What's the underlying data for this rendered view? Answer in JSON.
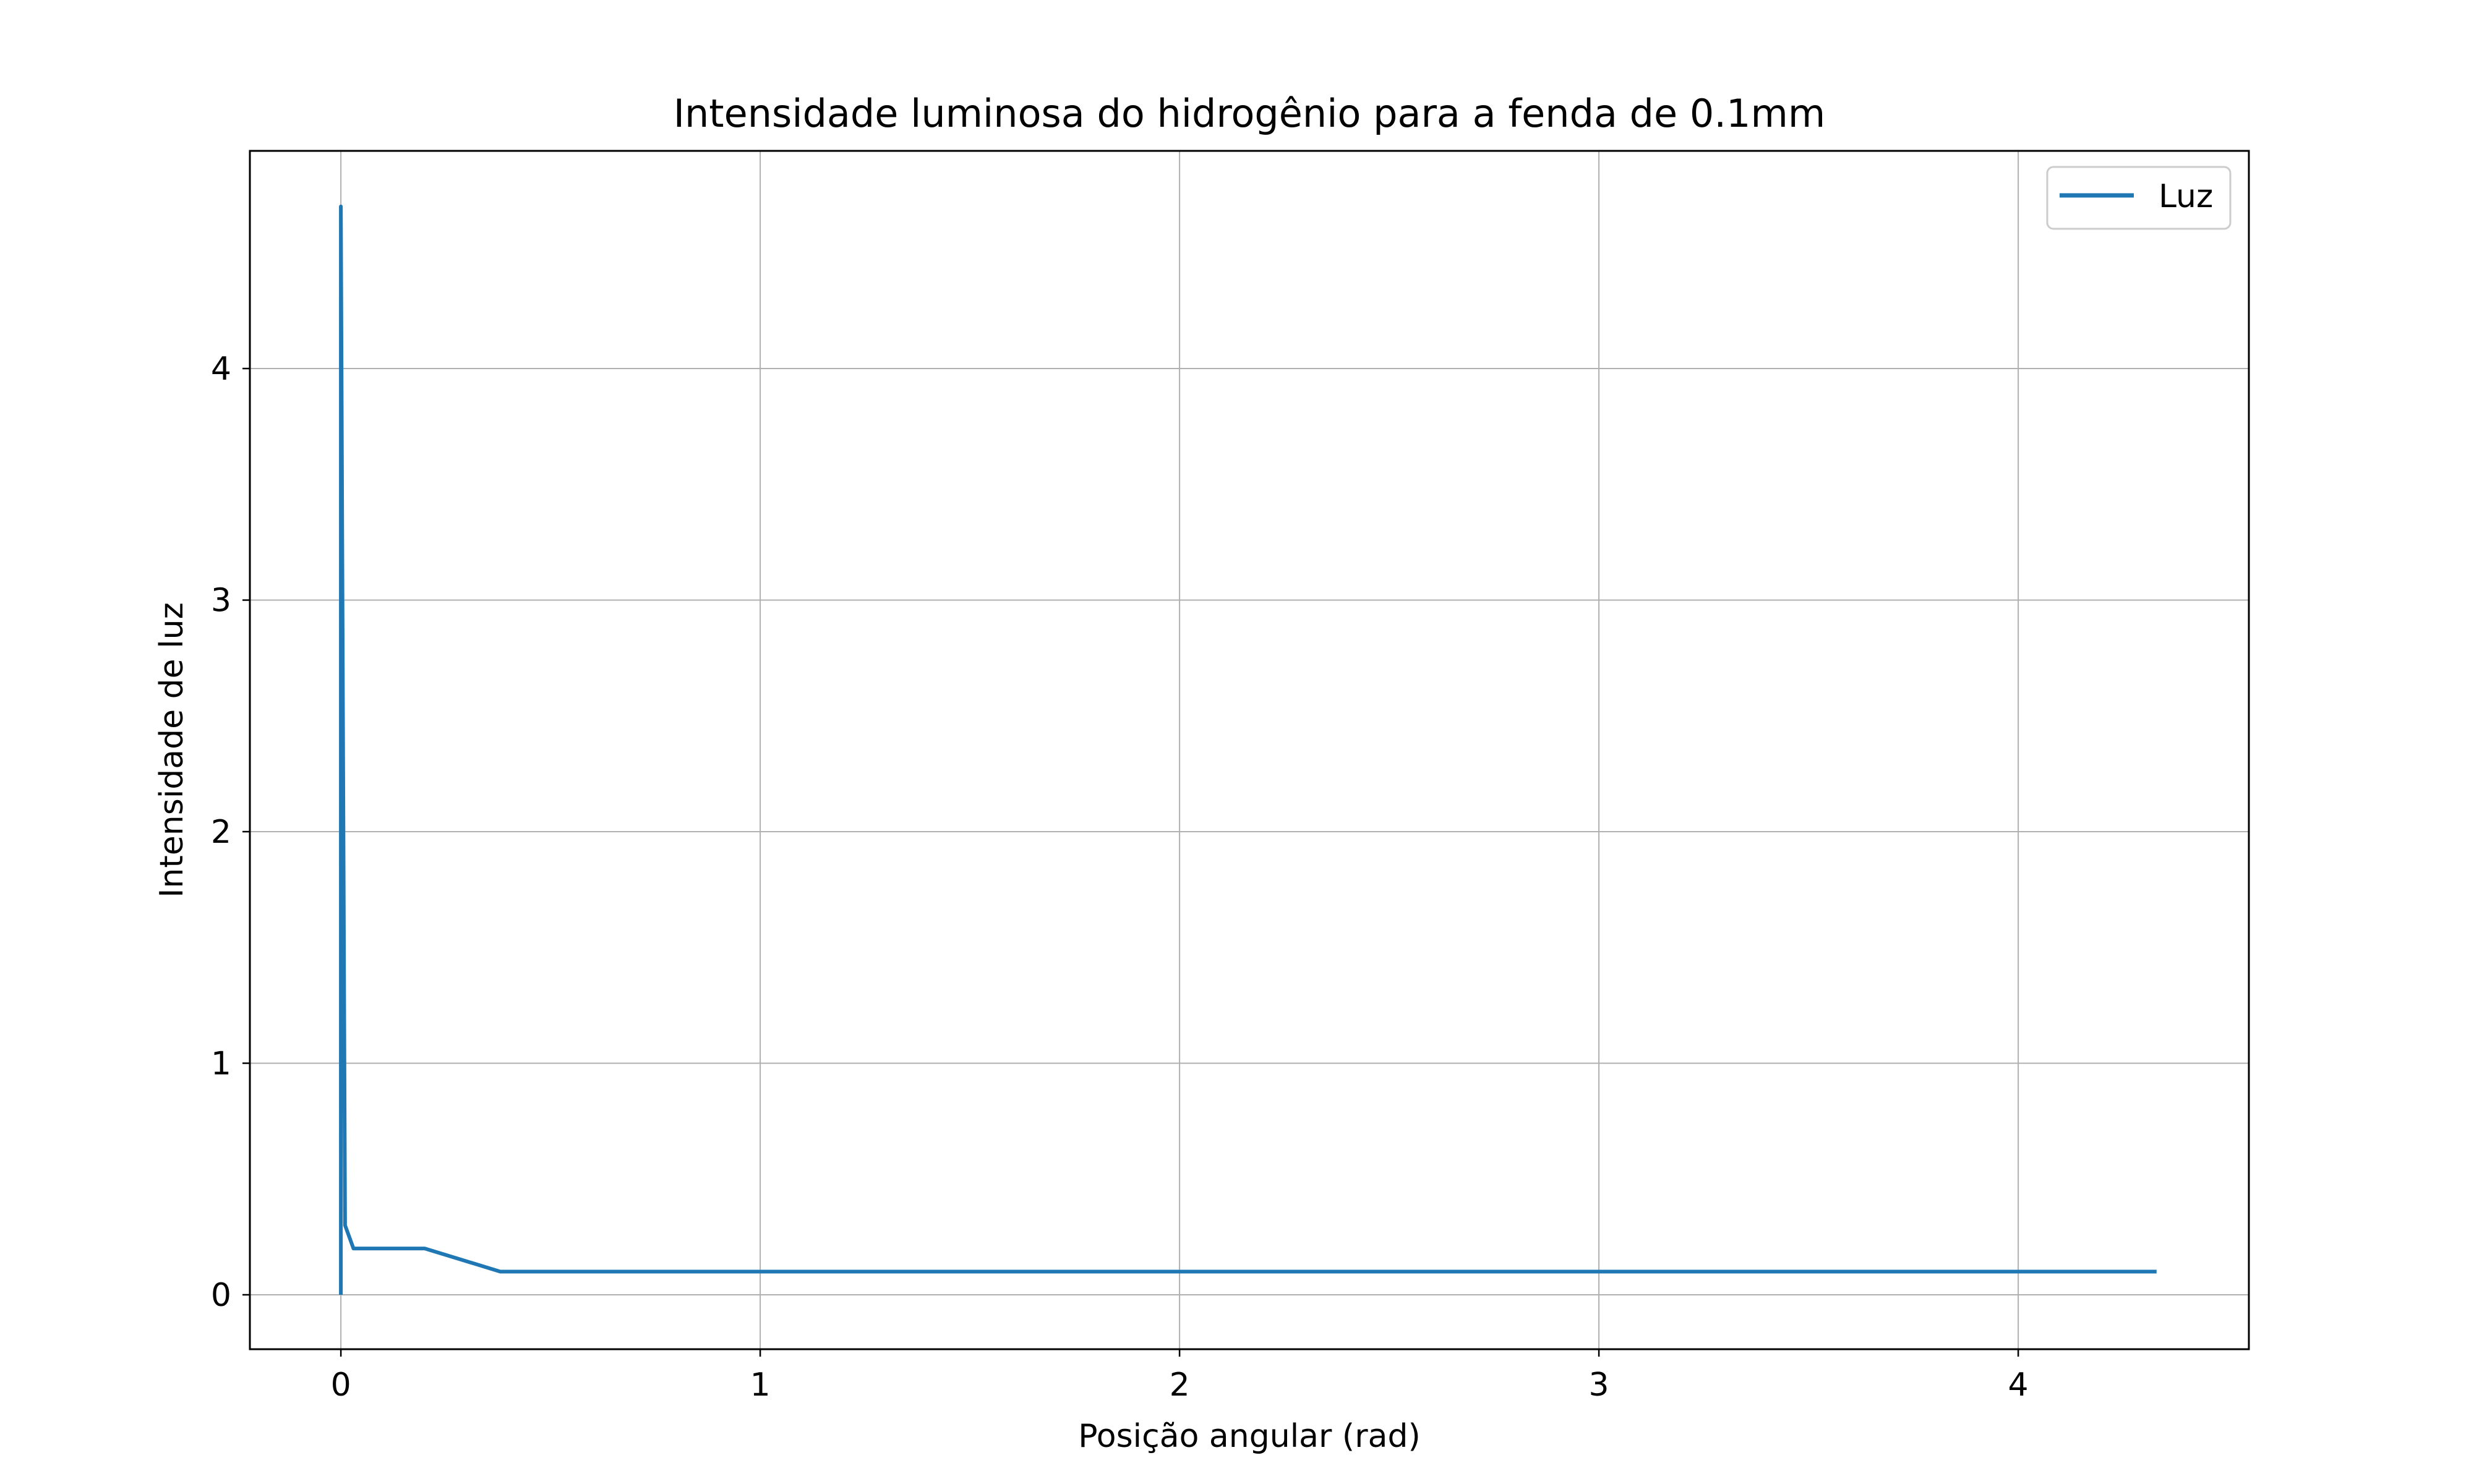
{
  "chart_data": {
    "type": "line",
    "title": "Intensidade luminosa do hidrogênio para a fenda de 0.1mm",
    "xlabel": "Posição angular (rad)",
    "ylabel": "Intensidade de luz",
    "xlim": [
      -0.217,
      4.55
    ],
    "ylim": [
      -0.235,
      4.94
    ],
    "xticks": [
      0,
      1,
      2,
      3,
      4
    ],
    "yticks": [
      0,
      1,
      2,
      3,
      4
    ],
    "grid": true,
    "legend_position": "top-right",
    "series": [
      {
        "name": "Luz",
        "color": "#1f77b4",
        "x": [
          0,
          0,
          0.01,
          0.03,
          0.2,
          0.38,
          0.5,
          1,
          1.5,
          2,
          2.5,
          3,
          3.5,
          4,
          4.33
        ],
        "y": [
          0,
          4.7,
          0.3,
          0.2,
          0.2,
          0.1,
          0.1,
          0.1,
          0.1,
          0.1,
          0.1,
          0.1,
          0.1,
          0.1,
          0.1
        ]
      }
    ]
  }
}
